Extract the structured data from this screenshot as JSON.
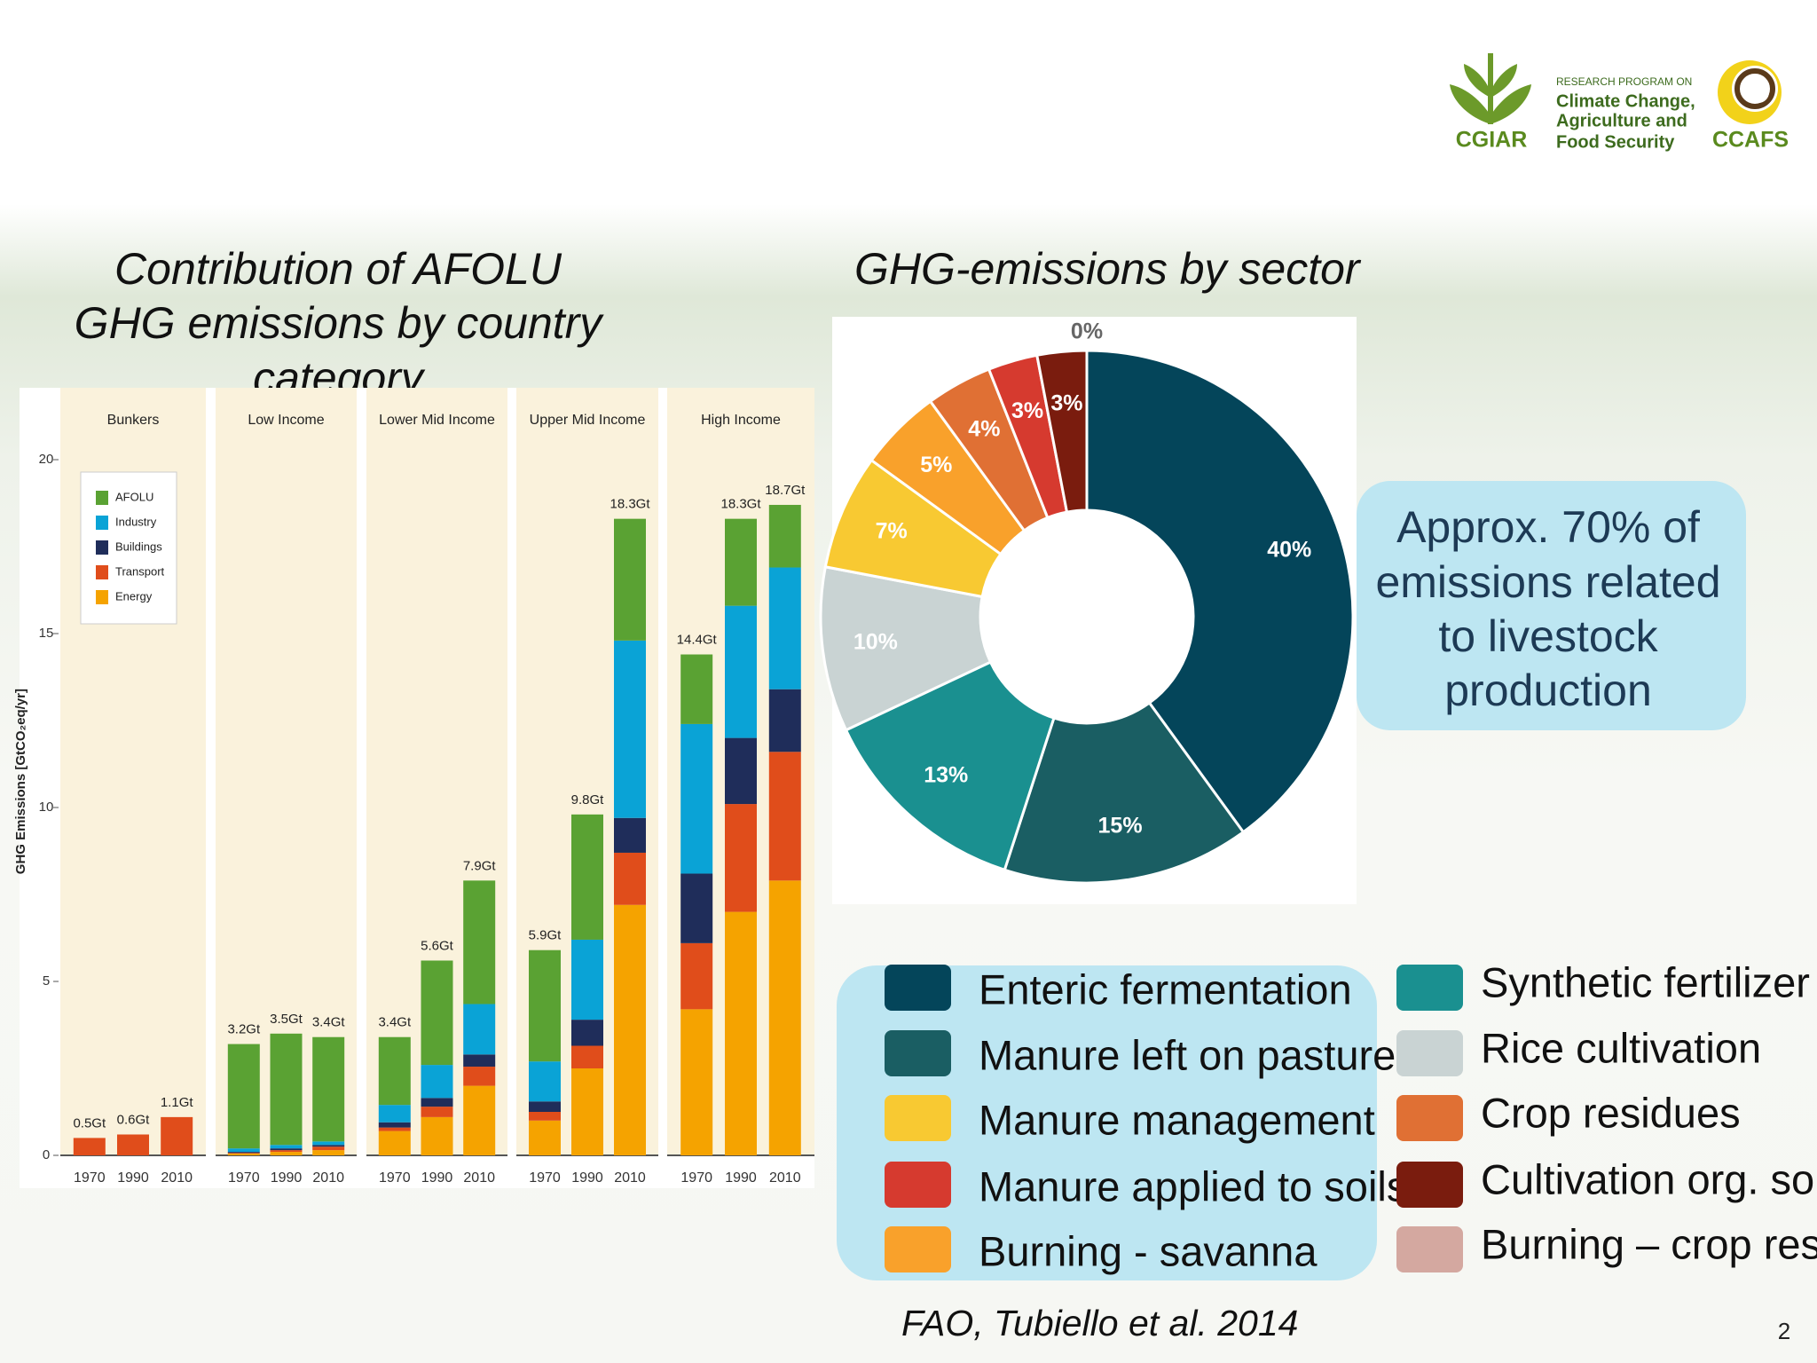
{
  "logo": {
    "cgiar": "CGIAR",
    "program": "RESEARCH PROGRAM ON",
    "name_lines": [
      "Climate Change,",
      "Agriculture and",
      "Food Security"
    ],
    "ccafs": "CCAFS"
  },
  "callout_lines": [
    "Approx. 70% of",
    "emissions related",
    "to livestock",
    "production"
  ],
  "source": "FAO, Tubiello et al. 2014",
  "page_number": "2",
  "chart_data": [
    {
      "type": "stacked-bar",
      "title": [
        "Contribution of AFOLU",
        "GHG emissions by country",
        "category"
      ],
      "ylabel": "GHG Emissions [GtCO₂eq/yr]",
      "groups": [
        "Bunkers",
        "Low Income",
        "Lower Mid Income",
        "Upper Mid Income",
        "High Income"
      ],
      "categories": [
        "1970",
        "1990",
        "2010",
        "1970",
        "1990",
        "2010",
        "1970",
        "1990",
        "2010",
        "1970",
        "1990",
        "2010",
        "1970",
        "1990",
        "2010"
      ],
      "series": [
        {
          "name": "AFOLU",
          "color": "#5aa233",
          "values": [
            0,
            0,
            0,
            3.0,
            3.2,
            3.0,
            1.95,
            3.0,
            3.55,
            3.2,
            3.6,
            3.5,
            2.0,
            2.5,
            1.8
          ]
        },
        {
          "name": "Industry",
          "color": "#0aa3d6",
          "values": [
            0,
            0,
            0,
            0.1,
            0.1,
            0.1,
            0.5,
            0.95,
            1.45,
            1.15,
            2.3,
            5.1,
            4.3,
            3.8,
            3.5
          ]
        },
        {
          "name": "Buildings",
          "color": "#1f2d5a",
          "values": [
            0,
            0,
            0,
            0.03,
            0.05,
            0.05,
            0.15,
            0.25,
            0.35,
            0.3,
            0.75,
            1.0,
            2.0,
            1.9,
            1.8
          ]
        },
        {
          "name": "Transport",
          "color": "#e04d1b",
          "values": [
            0.5,
            0.6,
            1.1,
            0.02,
            0.05,
            0.1,
            0.1,
            0.3,
            0.55,
            0.25,
            0.65,
            1.5,
            1.9,
            3.1,
            3.7
          ]
        },
        {
          "name": "Energy",
          "color": "#f5a300",
          "values": [
            0,
            0,
            0,
            0.05,
            0.1,
            0.15,
            0.7,
            1.1,
            2.0,
            1.0,
            2.5,
            7.2,
            4.2,
            7.0,
            7.9
          ]
        }
      ],
      "totals": [
        0.5,
        0.6,
        1.1,
        3.2,
        3.5,
        3.4,
        3.4,
        5.6,
        7.9,
        5.9,
        9.8,
        18.3,
        14.4,
        18.3,
        18.7
      ],
      "total_labels": [
        "0.5Gt",
        "0.6Gt",
        "1.1Gt",
        "3.2Gt",
        "3.5Gt",
        "3.4Gt",
        "3.4Gt",
        "5.6Gt",
        "7.9Gt",
        "5.9Gt",
        "9.8Gt",
        "18.3Gt",
        "14.4Gt",
        "18.3Gt",
        "18.7Gt"
      ],
      "ylim": [
        0,
        21.5
      ],
      "yticks": [
        0,
        5,
        10,
        15,
        20
      ],
      "legend": "upper left"
    },
    {
      "type": "donut",
      "title": "GHG-emissions by sector",
      "categories": [
        "Enteric fermentation",
        "Manure left on pasture",
        "Synthetic fertilizer",
        "Rice cultivation",
        "Manure management",
        "Burning - savanna",
        "Crop residues",
        "Manure applied to soils",
        "Cultivation org. soil",
        "Burning – crop res."
      ],
      "values": [
        40,
        15,
        13,
        10,
        7,
        5,
        4,
        3,
        3,
        0
      ],
      "value_labels": [
        "40%",
        "15%",
        "13%",
        "10%",
        "7%",
        "5%",
        "4%",
        "3%",
        "3%",
        "0%"
      ],
      "colors": [
        "#04455a",
        "#1a5e63",
        "#1a9090",
        "#c9d3d3",
        "#f8c932",
        "#f9a12b",
        "#e07034",
        "#d63a2f",
        "#7a1c0e",
        "#d4a8a0"
      ]
    }
  ]
}
